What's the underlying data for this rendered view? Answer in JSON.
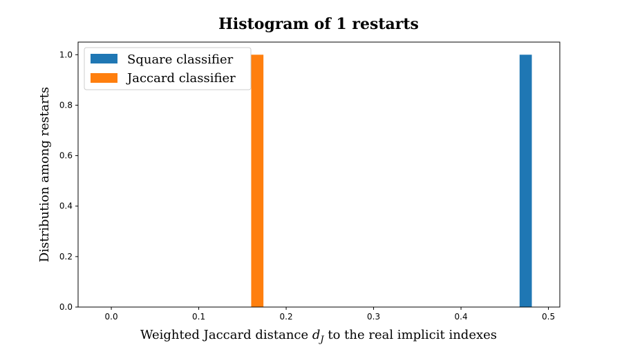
{
  "chart_data": {
    "type": "bar",
    "title": "Histogram of 1 restarts",
    "xlabel_prefix": "Weighted Jaccard distance ",
    "xlabel_symbol": "d",
    "xlabel_subscript": "J",
    "xlabel_suffix": " to the real implicit indexes",
    "ylabel": "Distribution among restarts",
    "xlim": [
      -0.038,
      0.513
    ],
    "ylim": [
      0.0,
      1.05
    ],
    "xticks": [
      0.0,
      0.1,
      0.2,
      0.3,
      0.4,
      0.5
    ],
    "xtick_labels": [
      "0.0",
      "0.1",
      "0.2",
      "0.3",
      "0.4",
      "0.5"
    ],
    "yticks": [
      0.0,
      0.2,
      0.4,
      0.6,
      0.8,
      1.0
    ],
    "ytick_labels": [
      "0.0",
      "0.2",
      "0.4",
      "0.6",
      "0.8",
      "1.0"
    ],
    "grid": false,
    "legend_position": "top-left",
    "series": [
      {
        "name": "Square classifier",
        "color": "#1f77b4",
        "bins": [
          {
            "x0": 0.467,
            "x1": 0.481,
            "value": 1.0
          }
        ]
      },
      {
        "name": "Jaccard classifier",
        "color": "#ff7f0e",
        "bins": [
          {
            "x0": 0.16,
            "x1": 0.174,
            "value": 1.0
          }
        ]
      }
    ]
  }
}
